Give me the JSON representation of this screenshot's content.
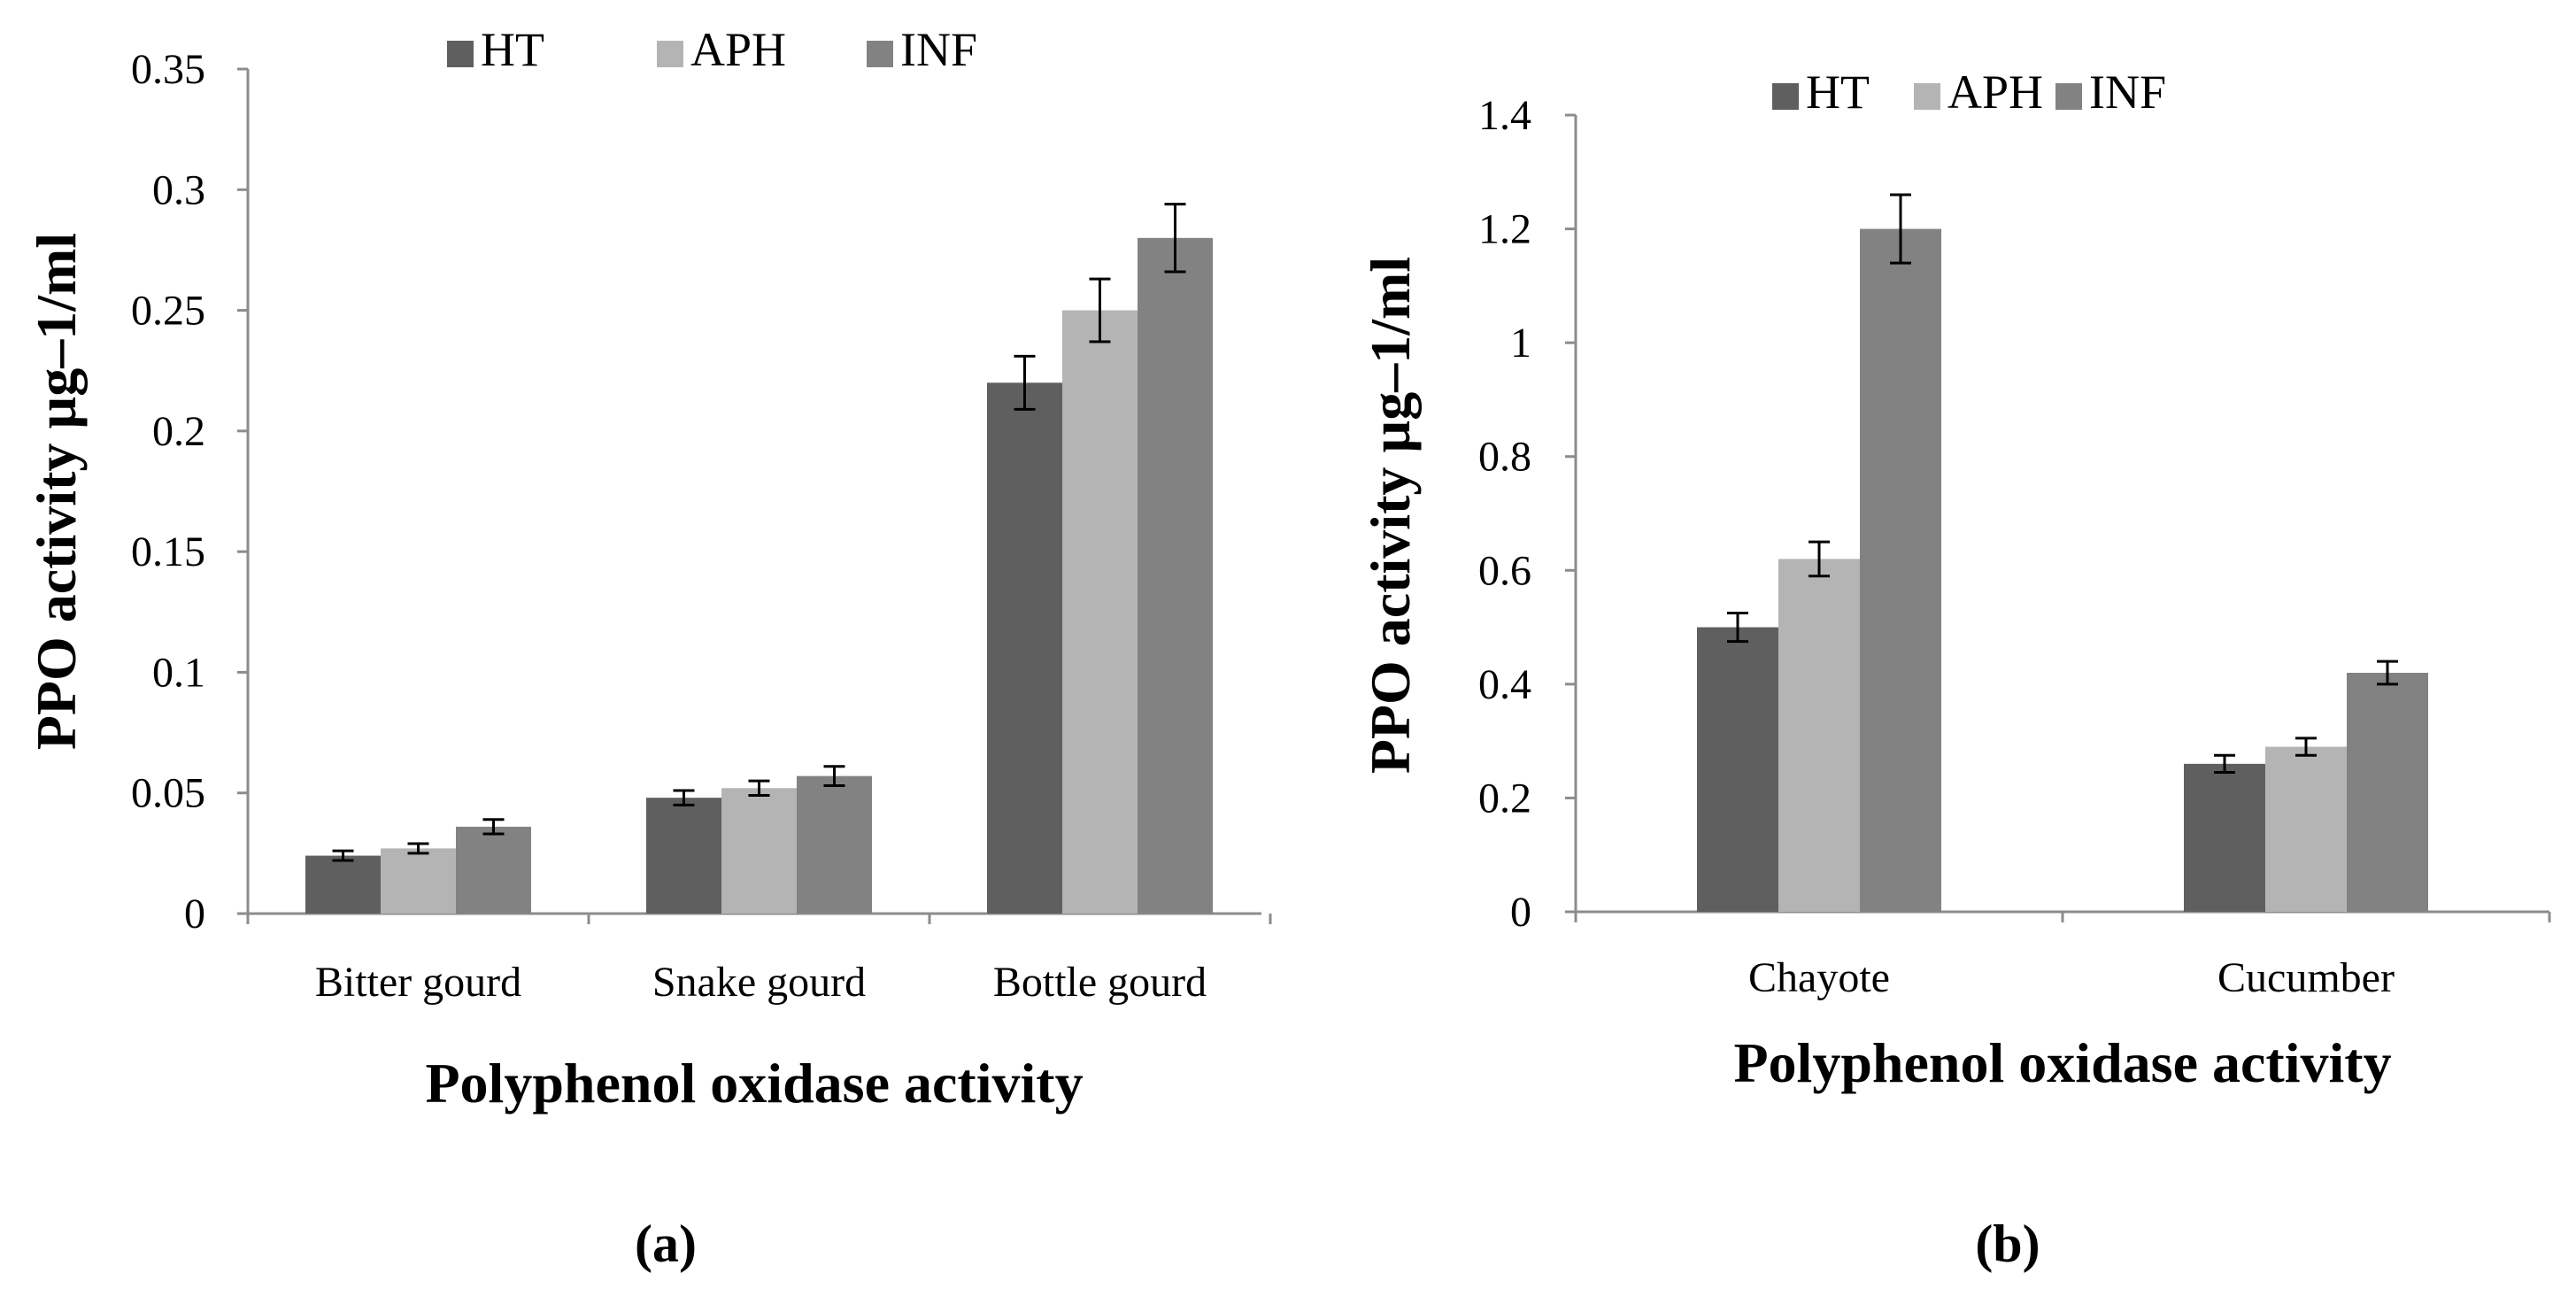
{
  "colors": {
    "HT": "#5f5f5f",
    "APH": "#b4b4b4",
    "INF": "#828282",
    "axis": "#8c8c8c",
    "error": "#000000"
  },
  "chart_data": [
    {
      "type": "bar",
      "panel_label": "(a)",
      "categories": [
        "Bitter gourd",
        "Snake gourd",
        "Bottle gourd"
      ],
      "series": [
        {
          "name": "HT",
          "values": [
            0.024,
            0.048,
            0.22
          ],
          "errors": [
            0.002,
            0.003,
            0.011
          ]
        },
        {
          "name": "APH",
          "values": [
            0.027,
            0.052,
            0.25
          ],
          "errors": [
            0.002,
            0.003,
            0.013
          ]
        },
        {
          "name": "INF",
          "values": [
            0.036,
            0.057,
            0.28
          ],
          "errors": [
            0.003,
            0.004,
            0.014
          ]
        }
      ],
      "ylim": [
        0,
        0.35
      ],
      "yticks": [
        0,
        0.05,
        0.1,
        0.15,
        0.2,
        0.25,
        0.3,
        0.35
      ],
      "ytick_labels": [
        "0",
        "0.05",
        "0.1",
        "0.15",
        "0.2",
        "0.25",
        "0.3",
        "0.35"
      ],
      "xlabel": "Polyphenol oxidase activity",
      "ylabel": "PPO activity µg–1/ml",
      "legend": "top"
    },
    {
      "type": "bar",
      "panel_label": "(b)",
      "categories": [
        "Chayote",
        "Cucumber"
      ],
      "series": [
        {
          "name": "HT",
          "values": [
            0.5,
            0.26
          ],
          "errors": [
            0.025,
            0.015
          ]
        },
        {
          "name": "APH",
          "values": [
            0.62,
            0.29
          ],
          "errors": [
            0.03,
            0.015
          ]
        },
        {
          "name": "INF",
          "values": [
            1.2,
            0.42
          ],
          "errors": [
            0.06,
            0.02
          ]
        }
      ],
      "ylim": [
        0,
        1.4
      ],
      "yticks": [
        0,
        0.2,
        0.4,
        0.6,
        0.8,
        1,
        1.2,
        1.4
      ],
      "ytick_labels": [
        "0",
        "0.2",
        "0.4",
        "0.6",
        "0.8",
        "1",
        "1.2",
        "1.4"
      ],
      "xlabel": "Polyphenol oxidase activity",
      "ylabel": "PPO activity µg–1/ml",
      "legend": "top"
    }
  ]
}
